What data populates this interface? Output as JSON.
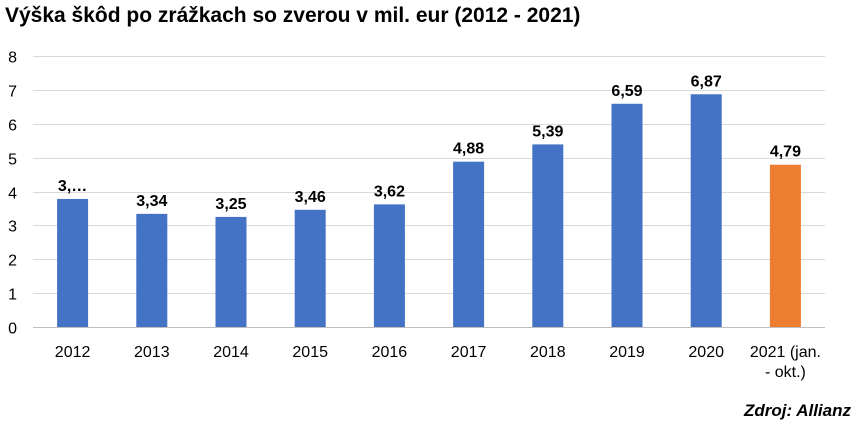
{
  "chart_data": {
    "type": "bar",
    "title": "Výška škôd po zrážkach so zverou v mil. eur (2012 - 2021)",
    "xlabel": "",
    "ylabel": "",
    "categories": [
      "2012",
      "2013",
      "2014",
      "2015",
      "2016",
      "2017",
      "2018",
      "2019",
      "2020",
      "2021 (jan. - okt.)"
    ],
    "category_lines": [
      [
        "2012"
      ],
      [
        "2013"
      ],
      [
        "2014"
      ],
      [
        "2015"
      ],
      [
        "2016"
      ],
      [
        "2017"
      ],
      [
        "2018"
      ],
      [
        "2019"
      ],
      [
        "2020"
      ],
      [
        "2021 (jan.",
        "- okt.)"
      ]
    ],
    "values": [
      3.78,
      3.34,
      3.25,
      3.46,
      3.62,
      4.88,
      5.39,
      6.59,
      6.87,
      4.79
    ],
    "data_labels": [
      "3,…",
      "3,34",
      "3,25",
      "3,46",
      "3,62",
      "4,88",
      "5,39",
      "6,59",
      "6,87",
      "4,79"
    ],
    "yticks": [
      "0",
      "1",
      "2",
      "3",
      "4",
      "5",
      "6",
      "7",
      "8"
    ],
    "ylim": [
      0,
      8
    ],
    "grid": true,
    "legend": "none",
    "colors": [
      "#4472C4",
      "#4472C4",
      "#4472C4",
      "#4472C4",
      "#4472C4",
      "#4472C4",
      "#4472C4",
      "#4472C4",
      "#4472C4",
      "#ED7D31"
    ],
    "source": "Zdroj: Allianz"
  }
}
